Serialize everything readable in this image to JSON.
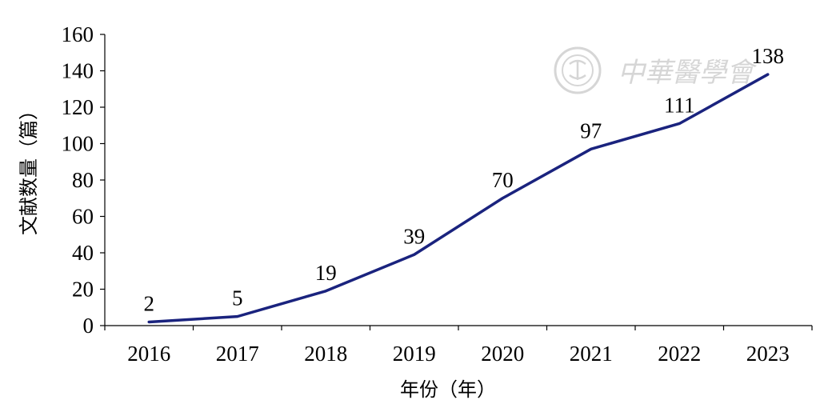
{
  "chart_data": {
    "type": "line",
    "categories": [
      "2016",
      "2017",
      "2018",
      "2019",
      "2020",
      "2021",
      "2022",
      "2023"
    ],
    "series": [
      {
        "values": [
          2,
          5,
          19,
          39,
          70,
          97,
          111,
          138
        ],
        "color": "#1a237e"
      }
    ],
    "data_labels": [
      "2",
      "5",
      "19",
      "39",
      "70",
      "97",
      "111",
      "138"
    ],
    "xlabel": "年份（年）",
    "ylabel": "文献数量（篇）",
    "ylim": [
      0,
      160
    ],
    "yticks": [
      0,
      20,
      40,
      60,
      80,
      100,
      120,
      140,
      160
    ],
    "grid": false,
    "legend": "none"
  },
  "watermark": {
    "text": "中華醫學會"
  }
}
